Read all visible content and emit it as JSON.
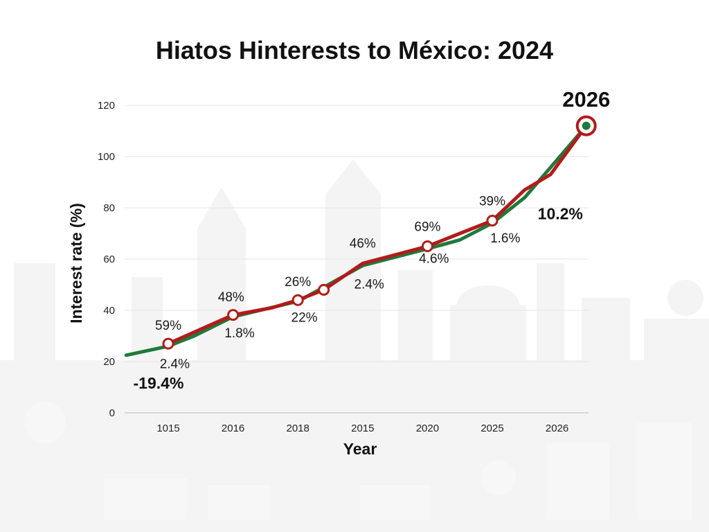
{
  "title": "Hiatos Hinterests to México: 2024",
  "chart_data": {
    "type": "line",
    "title": "Hiatos Hinterests to México: 2024",
    "xlabel": "Year",
    "ylabel": "Interest rate (%)",
    "ylim": [
      0,
      120
    ],
    "yticks": [
      0,
      20,
      40,
      60,
      80,
      100,
      120
    ],
    "categories": [
      "1015",
      "2016",
      "2018",
      "2015",
      "2020",
      "2025",
      "2026"
    ],
    "grid": "horizontal",
    "colors": {
      "red_series": "#b31b1b",
      "green_series": "#1e7a3c",
      "marker_fill": "#ffffff",
      "grid": "#e6e6e6"
    },
    "series": [
      {
        "color": "#b31b1b",
        "points": [
          {
            "x": 0,
            "y": 27
          },
          {
            "x": 1,
            "y": 38.2
          },
          {
            "x": 1.6,
            "y": 41
          },
          {
            "x": 2,
            "y": 44
          },
          {
            "x": 2.4,
            "y": 48
          },
          {
            "x": 3,
            "y": 58.3
          },
          {
            "x": 4,
            "y": 65
          },
          {
            "x": 4.5,
            "y": 70
          },
          {
            "x": 5,
            "y": 75
          },
          {
            "x": 5.5,
            "y": 87
          },
          {
            "x": 5.9,
            "y": 93
          },
          {
            "x": 6.45,
            "y": 112
          }
        ],
        "markers": [
          0,
          1,
          3,
          4,
          6,
          8,
          11
        ]
      },
      {
        "color": "#1e7a3c",
        "points": [
          {
            "x": -0.65,
            "y": 22.5
          },
          {
            "x": 0,
            "y": 26
          },
          {
            "x": 0.4,
            "y": 30
          },
          {
            "x": 1,
            "y": 37.5
          },
          {
            "x": 2,
            "y": 43.5
          },
          {
            "x": 2.4,
            "y": 49
          },
          {
            "x": 3,
            "y": 57.5
          },
          {
            "x": 4,
            "y": 64
          },
          {
            "x": 4.5,
            "y": 67.5
          },
          {
            "x": 5,
            "y": 74
          },
          {
            "x": 5.5,
            "y": 84
          },
          {
            "x": 6.45,
            "y": 112
          }
        ],
        "end_marker": true
      }
    ],
    "annotations": [
      {
        "text": "59%",
        "x": 0,
        "y": 32.5,
        "style": "normal"
      },
      {
        "text": "2.4%",
        "x": 0.1,
        "y": 17.5,
        "style": "normal"
      },
      {
        "text": "-19.4%",
        "x": -0.15,
        "y": 9.5,
        "style": "bold"
      },
      {
        "text": "48%",
        "x": 0.97,
        "y": 43.5,
        "style": "normal"
      },
      {
        "text": "1.8%",
        "x": 1.1,
        "y": 29.5,
        "style": "normal"
      },
      {
        "text": "26%",
        "x": 2,
        "y": 49.5,
        "style": "normal"
      },
      {
        "text": "22%",
        "x": 2.1,
        "y": 35.5,
        "style": "normal"
      },
      {
        "text": "46%",
        "x": 3,
        "y": 64.5,
        "style": "normal"
      },
      {
        "text": "2.4%",
        "x": 3.1,
        "y": 48.5,
        "style": "normal"
      },
      {
        "text": "69%",
        "x": 4,
        "y": 71,
        "style": "normal"
      },
      {
        "text": "4.6%",
        "x": 4.1,
        "y": 58.5,
        "style": "normal"
      },
      {
        "text": "39%",
        "x": 5,
        "y": 81,
        "style": "normal"
      },
      {
        "text": "1.6%",
        "x": 5.2,
        "y": 66.5,
        "style": "normal"
      },
      {
        "text": "10.2%",
        "x": 6.05,
        "y": 75.5,
        "style": "bold"
      },
      {
        "text": "2026",
        "x": 6.45,
        "y": 119.5,
        "style": "end"
      }
    ]
  }
}
